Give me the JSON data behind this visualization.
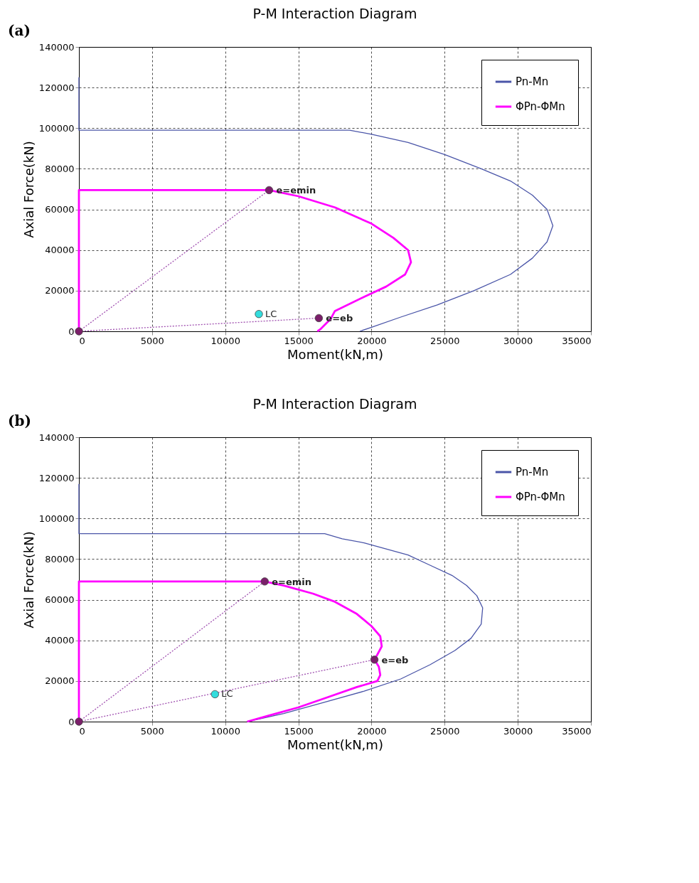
{
  "chart_data": [
    {
      "type": "line",
      "title": "P-M Interaction Diagram",
      "xlabel": "Moment(kN,m)",
      "ylabel": "Axial Force(kN)",
      "xlim": [
        0,
        35000
      ],
      "xticks": [
        0,
        5000,
        10000,
        15000,
        20000,
        25000,
        30000,
        35000
      ],
      "ylim": [
        0,
        140000
      ],
      "yticks": [
        0,
        20000,
        40000,
        60000,
        80000,
        100000,
        120000,
        140000
      ],
      "grid": true,
      "legend": "top right",
      "line_style": "solid",
      "marker": "none",
      "series": [
        {
          "name": "Pn-Mn",
          "color": "#4a55a8",
          "type": "line",
          "x": [
            0,
            0,
            18500,
            20000,
            22500,
            25000,
            27500,
            29500,
            31000,
            32000,
            32400,
            32000,
            31000,
            29500,
            27000,
            24500,
            22000,
            20000,
            19200
          ],
          "values": [
            125000,
            99000,
            99000,
            97000,
            93000,
            87000,
            80000,
            74000,
            67000,
            60000,
            52000,
            44000,
            36000,
            28000,
            20000,
            13000,
            7000,
            2000,
            0
          ]
        },
        {
          "name": "ΦPn-ΦMn",
          "color": "#ff00ff",
          "type": "line",
          "x": [
            0,
            0,
            13000,
            15000,
            17500,
            20000,
            21500,
            22500,
            22700,
            22300,
            21000,
            19500,
            17500,
            17200,
            16500,
            16300
          ],
          "values": [
            0,
            69500,
            69500,
            66500,
            61000,
            53000,
            46000,
            40000,
            34000,
            28000,
            22000,
            17000,
            10000,
            6000,
            1000,
            0
          ]
        },
        {
          "color": "#a050b0",
          "type": "line",
          "line_style": "dotted",
          "x": [
            0,
            13000
          ],
          "values": [
            0,
            69500
          ]
        },
        {
          "color": "#a050b0",
          "type": "line",
          "line_style": "dotted",
          "x": [
            0,
            16400
          ],
          "values": [
            0,
            6500
          ]
        },
        {
          "color": "#7b1f6a",
          "type": "scatter",
          "marker": "circle",
          "x": [
            0,
            13000,
            16400
          ],
          "values": [
            0,
            69500,
            6500
          ]
        },
        {
          "name": "LC",
          "color": "#33dddd",
          "type": "scatter",
          "marker": "circle",
          "x": [
            12300
          ],
          "values": [
            8500
          ]
        }
      ],
      "annotations": [
        "(a)",
        {
          "text": "e=emin",
          "x": 13000,
          "y": 69500
        },
        {
          "text": "e=eb",
          "x": 16400,
          "y": 6500
        }
      ]
    },
    {
      "type": "line",
      "title": "P-M Interaction Diagram",
      "xlabel": "Moment(kN,m)",
      "ylabel": "Axial Force(kN)",
      "xlim": [
        0,
        35000
      ],
      "xticks": [
        0,
        5000,
        10000,
        15000,
        20000,
        25000,
        30000,
        35000
      ],
      "ylim": [
        0,
        140000
      ],
      "yticks": [
        0,
        20000,
        40000,
        60000,
        80000,
        100000,
        120000,
        140000
      ],
      "grid": true,
      "legend": "top right",
      "line_style": "solid",
      "marker": "none",
      "series": [
        {
          "name": "Pn-Mn",
          "color": "#4a55a8",
          "type": "line",
          "x": [
            0,
            0,
            16800,
            18000,
            19500,
            21000,
            22500,
            24000,
            25500,
            26500,
            27200,
            27600,
            27500,
            26800,
            25700,
            24000,
            22000,
            19500,
            16500,
            14000,
            11500
          ],
          "values": [
            117000,
            92500,
            92500,
            90000,
            88000,
            85000,
            82000,
            77000,
            72000,
            67000,
            62000,
            56000,
            48000,
            41000,
            35000,
            28000,
            21000,
            15000,
            9000,
            4000,
            0
          ]
        },
        {
          "name": "ΦPn-ΦMn",
          "color": "#ff00ff",
          "type": "line",
          "x": [
            0,
            0,
            12700,
            14000,
            16000,
            17500,
            19000,
            20000,
            20600,
            20700,
            20400,
            20200,
            20500,
            20600,
            20400,
            19000,
            17000,
            15000,
            13000,
            11500
          ],
          "values": [
            0,
            69000,
            69000,
            67000,
            63000,
            59000,
            53000,
            47000,
            42000,
            37000,
            33000,
            30500,
            27000,
            23000,
            20000,
            17000,
            12000,
            7000,
            3000,
            0
          ]
        },
        {
          "color": "#a050b0",
          "type": "line",
          "line_style": "dotted",
          "x": [
            0,
            12700
          ],
          "values": [
            0,
            69000
          ]
        },
        {
          "color": "#a050b0",
          "type": "line",
          "line_style": "dotted",
          "x": [
            0,
            20200
          ],
          "values": [
            0,
            30500
          ]
        },
        {
          "color": "#7b1f6a",
          "type": "scatter",
          "marker": "circle",
          "x": [
            0,
            12700,
            20200
          ],
          "values": [
            0,
            69000,
            30500
          ]
        },
        {
          "name": "LC",
          "color": "#33dddd",
          "type": "scatter",
          "marker": "circle",
          "x": [
            9300
          ],
          "values": [
            13500
          ]
        }
      ],
      "annotations": [
        "(b)",
        {
          "text": "e=emin",
          "x": 12700,
          "y": 69000
        },
        {
          "text": "e=eb",
          "x": 20200,
          "y": 30500
        }
      ]
    }
  ]
}
